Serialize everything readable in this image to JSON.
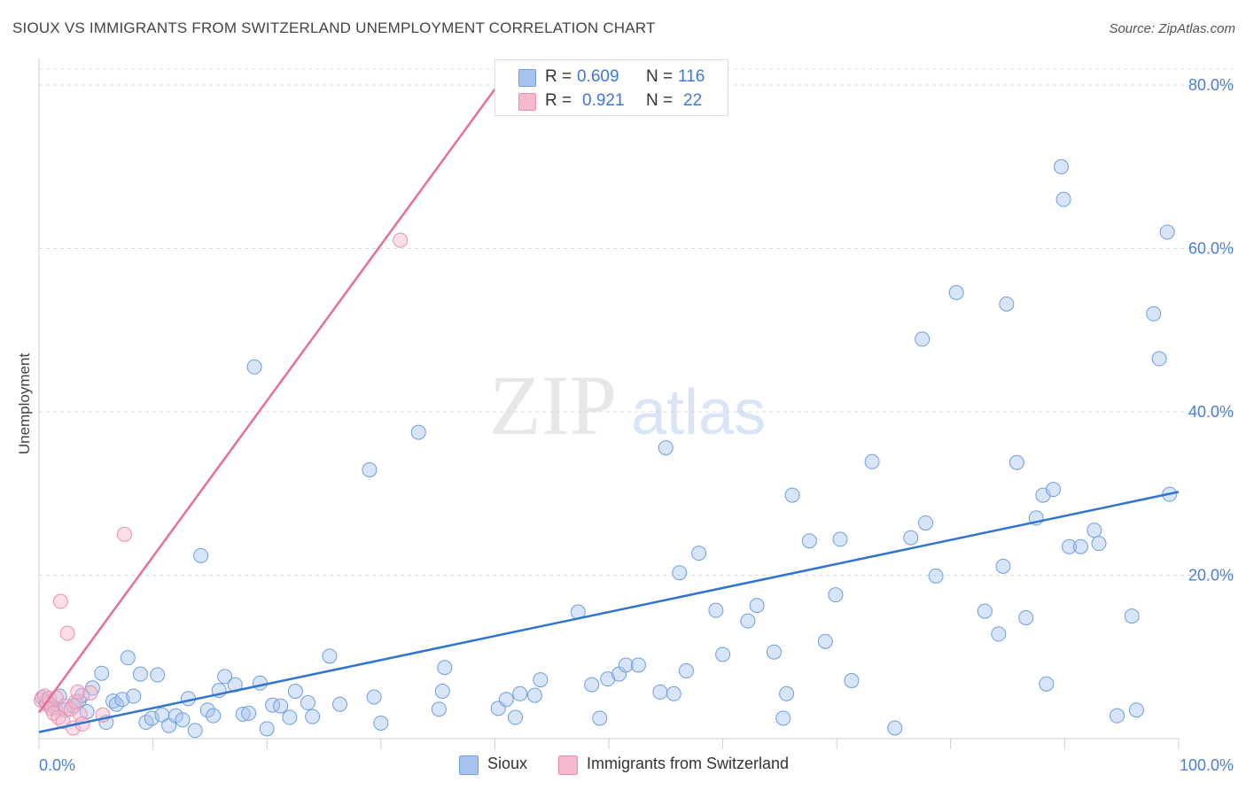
{
  "header": {
    "title": "SIOUX VS IMMIGRANTS FROM SWITZERLAND UNEMPLOYMENT CORRELATION CHART",
    "source": "Source: ZipAtlas.com"
  },
  "watermark": {
    "zip": "ZIP",
    "atlas": "atlas"
  },
  "colors": {
    "blue_fill": "#a8c4ee",
    "blue_stroke": "#6f9ede",
    "blue_line": "#2f74d0",
    "pink_fill": "#f6b8cb",
    "pink_stroke": "#ec8fac",
    "pink_line": "#e76e97",
    "grid": "#dcdcdc",
    "tick_text": "#4a7fd4"
  },
  "legend": {
    "rows": [
      {
        "r_label": "R =",
        "r_value": "0.609",
        "n_label": "N =",
        "n_value": "116"
      },
      {
        "r_label": "R =",
        "r_value": "0.921",
        "n_label": "N =",
        "n_value": "22"
      }
    ],
    "series": [
      "Sioux",
      "Immigrants from Switzerland"
    ]
  },
  "chart_data": {
    "type": "scatter",
    "title": "SIOUX VS IMMIGRANTS FROM SWITZERLAND UNEMPLOYMENT CORRELATION CHART",
    "xlabel": "",
    "ylabel": "Unemployment",
    "xlim": [
      0,
      100
    ],
    "ylim": [
      0,
      80
    ],
    "x_tick_labels": [
      "0.0%",
      "100.0%"
    ],
    "y_ticks": [
      20,
      40,
      60,
      80
    ],
    "y_tick_labels": [
      "20.0%",
      "40.0%",
      "60.0%",
      "80.0%"
    ],
    "grid": true,
    "series": [
      {
        "name": "Sioux",
        "r": 0.609,
        "n": 116,
        "trend": {
          "x": [
            0,
            100
          ],
          "y": [
            0.8,
            30.2
          ]
        },
        "points": [
          [
            0.3,
            5.0
          ],
          [
            0.6,
            4.5
          ],
          [
            1.0,
            4.2
          ],
          [
            1.4,
            3.8
          ],
          [
            1.8,
            5.2
          ],
          [
            2.3,
            3.5
          ],
          [
            3.0,
            4.0
          ],
          [
            3.5,
            4.6
          ],
          [
            3.8,
            5.3
          ],
          [
            4.2,
            3.3
          ],
          [
            4.7,
            6.2
          ],
          [
            5.5,
            8.0
          ],
          [
            5.9,
            2.0
          ],
          [
            6.5,
            4.6
          ],
          [
            6.8,
            4.2
          ],
          [
            7.3,
            4.8
          ],
          [
            7.8,
            9.9
          ],
          [
            8.3,
            5.2
          ],
          [
            8.9,
            7.9
          ],
          [
            9.4,
            2.0
          ],
          [
            9.9,
            2.5
          ],
          [
            10.4,
            7.8
          ],
          [
            10.8,
            2.9
          ],
          [
            11.4,
            1.6
          ],
          [
            12.0,
            2.8
          ],
          [
            12.6,
            2.3
          ],
          [
            13.1,
            4.9
          ],
          [
            13.7,
            1.0
          ],
          [
            14.2,
            22.4
          ],
          [
            14.8,
            3.5
          ],
          [
            15.3,
            2.8
          ],
          [
            15.8,
            5.9
          ],
          [
            16.3,
            7.6
          ],
          [
            17.2,
            6.6
          ],
          [
            17.9,
            3.0
          ],
          [
            18.4,
            3.1
          ],
          [
            18.9,
            45.5
          ],
          [
            19.4,
            6.8
          ],
          [
            20.0,
            1.2
          ],
          [
            20.5,
            4.1
          ],
          [
            21.2,
            4.0
          ],
          [
            22.0,
            2.6
          ],
          [
            22.5,
            5.8
          ],
          [
            23.6,
            4.4
          ],
          [
            24.0,
            2.7
          ],
          [
            25.5,
            10.1
          ],
          [
            26.4,
            4.2
          ],
          [
            29.0,
            32.9
          ],
          [
            29.4,
            5.1
          ],
          [
            30.0,
            1.9
          ],
          [
            33.3,
            37.5
          ],
          [
            35.1,
            3.6
          ],
          [
            35.4,
            5.8
          ],
          [
            35.6,
            8.7
          ],
          [
            40.3,
            3.7
          ],
          [
            41.0,
            4.8
          ],
          [
            41.8,
            2.6
          ],
          [
            42.2,
            5.5
          ],
          [
            43.5,
            5.3
          ],
          [
            44.0,
            7.2
          ],
          [
            47.3,
            15.5
          ],
          [
            48.5,
            6.6
          ],
          [
            49.2,
            2.5
          ],
          [
            49.9,
            7.3
          ],
          [
            50.9,
            7.9
          ],
          [
            51.5,
            9.0
          ],
          [
            52.6,
            9.0
          ],
          [
            54.5,
            5.7
          ],
          [
            55.0,
            35.6
          ],
          [
            55.7,
            5.5
          ],
          [
            56.2,
            20.3
          ],
          [
            56.8,
            8.3
          ],
          [
            57.9,
            22.7
          ],
          [
            59.4,
            15.7
          ],
          [
            60.0,
            10.3
          ],
          [
            62.2,
            14.4
          ],
          [
            63.0,
            16.3
          ],
          [
            64.5,
            10.6
          ],
          [
            65.6,
            5.5
          ],
          [
            65.3,
            2.5
          ],
          [
            66.1,
            29.8
          ],
          [
            67.6,
            24.2
          ],
          [
            69.0,
            11.9
          ],
          [
            69.9,
            17.6
          ],
          [
            70.3,
            24.4
          ],
          [
            71.3,
            7.1
          ],
          [
            73.1,
            33.9
          ],
          [
            75.1,
            1.3
          ],
          [
            76.5,
            24.6
          ],
          [
            77.5,
            48.9
          ],
          [
            77.8,
            26.4
          ],
          [
            78.7,
            19.9
          ],
          [
            80.5,
            54.6
          ],
          [
            83.0,
            15.6
          ],
          [
            84.2,
            12.8
          ],
          [
            84.6,
            21.1
          ],
          [
            84.9,
            53.2
          ],
          [
            85.8,
            33.8
          ],
          [
            86.6,
            14.8
          ],
          [
            87.5,
            27.0
          ],
          [
            88.1,
            29.8
          ],
          [
            88.4,
            6.7
          ],
          [
            89.0,
            30.5
          ],
          [
            89.7,
            70.0
          ],
          [
            89.9,
            66.0
          ],
          [
            90.4,
            23.5
          ],
          [
            91.4,
            23.5
          ],
          [
            92.6,
            25.5
          ],
          [
            93.0,
            23.9
          ],
          [
            94.6,
            2.8
          ],
          [
            95.9,
            15.0
          ],
          [
            96.3,
            3.5
          ],
          [
            97.8,
            52.0
          ],
          [
            98.3,
            46.5
          ],
          [
            99.0,
            62.0
          ],
          [
            99.2,
            29.9
          ]
        ]
      },
      {
        "name": "Immigrants from Switzerland",
        "r": 0.921,
        "n": 22,
        "trend": {
          "x": [
            0,
            40
          ],
          "y": [
            3.2,
            79.5
          ]
        },
        "points": [
          [
            0.2,
            4.7
          ],
          [
            0.5,
            5.2
          ],
          [
            0.7,
            4.2
          ],
          [
            0.9,
            4.9
          ],
          [
            1.1,
            3.7
          ],
          [
            1.3,
            3.1
          ],
          [
            1.5,
            5.0
          ],
          [
            1.7,
            2.6
          ],
          [
            1.9,
            16.8
          ],
          [
            2.1,
            2.1
          ],
          [
            2.3,
            4.0
          ],
          [
            2.5,
            12.9
          ],
          [
            2.8,
            3.6
          ],
          [
            3.0,
            1.3
          ],
          [
            3.2,
            4.5
          ],
          [
            3.4,
            5.7
          ],
          [
            3.6,
            3.0
          ],
          [
            3.8,
            1.8
          ],
          [
            4.5,
            5.6
          ],
          [
            5.6,
            2.9
          ],
          [
            7.5,
            25.0
          ],
          [
            31.7,
            61.0
          ]
        ]
      }
    ]
  }
}
